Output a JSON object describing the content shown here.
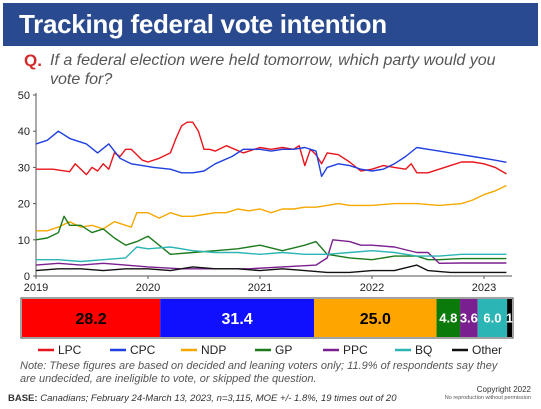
{
  "header": {
    "title": "Tracking federal vote intention"
  },
  "question": {
    "label": "Q.",
    "text": "If a federal election were held tomorrow, which party would you vote for?"
  },
  "footer": {
    "note": "Note:  These figures are based on decided and leaning voters only; 11.9% of respondents say they are undecided, are ineligible to vote, or skipped the question.",
    "base_label": "BASE:",
    "base_text": " Canadians; February 24-March 13, 2023, n=3,115,  MOE +/- 1.8%, 19 times out of 20",
    "copyright": "Copyright 2022",
    "copyright_sub": "No reproduction without permission"
  },
  "chart_data": [
    {
      "type": "line",
      "title": "",
      "xlabel": "",
      "ylabel": "",
      "ylim": [
        0,
        50
      ],
      "xlim": [
        2019.0,
        2023.25
      ],
      "yticks": [
        0,
        10,
        20,
        30,
        40,
        50
      ],
      "xticks": [
        "2019",
        "2020",
        "2021",
        "2022",
        "2023"
      ],
      "grid": false,
      "legend": "bottom",
      "series": [
        {
          "name": "LPC",
          "color": "#e8141b",
          "x": [
            2019.0,
            2019.15,
            2019.3,
            2019.35,
            2019.45,
            2019.5,
            2019.55,
            2019.6,
            2019.65,
            2019.7,
            2019.75,
            2019.8,
            2019.85,
            2019.95,
            2020.0,
            2020.1,
            2020.2,
            2020.25,
            2020.3,
            2020.35,
            2020.4,
            2020.45,
            2020.5,
            2020.55,
            2020.6,
            2020.7,
            2020.85,
            2021.0,
            2021.1,
            2021.2,
            2021.3,
            2021.35,
            2021.4,
            2021.45,
            2021.5,
            2021.55,
            2021.6,
            2021.7,
            2021.8,
            2021.9,
            2022.0,
            2022.1,
            2022.2,
            2022.3,
            2022.35,
            2022.4,
            2022.5,
            2022.6,
            2022.7,
            2022.8,
            2022.9,
            2023.0,
            2023.1,
            2023.2
          ],
          "values": [
            29.5,
            29.5,
            28.8,
            31,
            28,
            30,
            29,
            31,
            29.5,
            34,
            33,
            35,
            35,
            32,
            31.5,
            32.5,
            34,
            38,
            41.5,
            42.5,
            42.5,
            40,
            35,
            35,
            34.5,
            36,
            34,
            35.5,
            35,
            35.5,
            35,
            36,
            30.5,
            35,
            33.5,
            31,
            34,
            33.5,
            31.5,
            29,
            29.5,
            30.5,
            30,
            29.5,
            31,
            28.5,
            28.5,
            29.5,
            30.5,
            31.5,
            31.5,
            31,
            30,
            28.2
          ]
        },
        {
          "name": "CPC",
          "color": "#1f3fe0",
          "x": [
            2019.0,
            2019.1,
            2019.2,
            2019.3,
            2019.35,
            2019.45,
            2019.55,
            2019.65,
            2019.75,
            2019.85,
            2019.95,
            2020.05,
            2020.2,
            2020.3,
            2020.4,
            2020.5,
            2020.6,
            2020.75,
            2020.85,
            2021.0,
            2021.1,
            2021.2,
            2021.3,
            2021.4,
            2021.5,
            2021.55,
            2021.6,
            2021.7,
            2021.8,
            2021.9,
            2022.0,
            2022.1,
            2022.2,
            2022.3,
            2022.4,
            2022.5,
            2022.6,
            2022.7,
            2022.8,
            2022.9,
            2023.0,
            2023.1,
            2023.2
          ],
          "values": [
            36.5,
            37.5,
            40,
            38,
            37.5,
            36.5,
            34,
            36.5,
            32.5,
            31,
            30.5,
            30,
            29.5,
            28.5,
            28.5,
            29,
            31,
            33,
            35,
            35,
            34.5,
            35,
            35,
            35.5,
            34.5,
            27.5,
            30,
            31,
            30.5,
            29.5,
            29,
            29.5,
            31,
            33,
            35.5,
            35,
            34.5,
            34,
            33.5,
            33,
            32.5,
            32,
            31.4
          ]
        },
        {
          "name": "NDP",
          "color": "#f5a800",
          "x": [
            2019.0,
            2019.1,
            2019.2,
            2019.3,
            2019.4,
            2019.5,
            2019.6,
            2019.7,
            2019.8,
            2019.85,
            2019.9,
            2020.0,
            2020.1,
            2020.2,
            2020.3,
            2020.4,
            2020.5,
            2020.6,
            2020.7,
            2020.8,
            2020.9,
            2021.0,
            2021.1,
            2021.2,
            2021.3,
            2021.4,
            2021.5,
            2021.6,
            2021.7,
            2021.8,
            2021.9,
            2022.0,
            2022.2,
            2022.4,
            2022.6,
            2022.8,
            2022.9,
            2023.0,
            2023.1,
            2023.2
          ],
          "values": [
            12.5,
            12.5,
            13.5,
            15,
            13.5,
            14,
            13,
            15,
            14,
            13.5,
            17.5,
            17.5,
            16,
            17.5,
            16.5,
            16.5,
            17,
            17.5,
            17.5,
            18.5,
            18,
            18.5,
            17.5,
            18.5,
            18.5,
            19,
            19,
            19.5,
            20,
            19.5,
            19.5,
            19.5,
            20,
            20,
            19.5,
            20,
            21,
            22.5,
            23.5,
            25.0
          ]
        },
        {
          "name": "GP",
          "color": "#1c7a1c",
          "x": [
            2019.0,
            2019.1,
            2019.2,
            2019.25,
            2019.3,
            2019.4,
            2019.5,
            2019.6,
            2019.7,
            2019.8,
            2019.9,
            2020.0,
            2020.2,
            2020.4,
            2020.6,
            2020.8,
            2021.0,
            2021.2,
            2021.4,
            2021.5,
            2021.6,
            2021.8,
            2022.0,
            2022.2,
            2022.4,
            2022.5,
            2022.6,
            2022.8,
            2023.0,
            2023.2
          ],
          "values": [
            10,
            10.5,
            12,
            16.5,
            14,
            14,
            12,
            13,
            10.5,
            8.5,
            9.5,
            11,
            6,
            6.5,
            7,
            7.5,
            8.5,
            7,
            8.5,
            9.5,
            6,
            5,
            4.5,
            5.5,
            5.5,
            4.5,
            4.5,
            4.8,
            4.8,
            4.8
          ]
        },
        {
          "name": "PPC",
          "color": "#7a1f8f",
          "x": [
            2019.0,
            2019.2,
            2019.4,
            2019.6,
            2019.8,
            2020.0,
            2020.3,
            2020.6,
            2020.9,
            2021.2,
            2021.5,
            2021.6,
            2021.65,
            2021.8,
            2021.9,
            2022.0,
            2022.2,
            2022.4,
            2022.5,
            2022.6,
            2022.8,
            2023.0,
            2023.2
          ],
          "values": [
            3,
            3.5,
            3,
            3.5,
            3,
            2.5,
            2,
            2,
            2,
            2.5,
            3,
            5,
            10,
            9.5,
            8.5,
            8.5,
            8,
            6.5,
            6.5,
            3.5,
            3.6,
            3.6,
            3.6
          ]
        },
        {
          "name": "BQ",
          "color": "#2bb5b5",
          "x": [
            2019.0,
            2019.2,
            2019.4,
            2019.6,
            2019.8,
            2019.9,
            2020.0,
            2020.2,
            2020.4,
            2020.6,
            2020.8,
            2021.0,
            2021.2,
            2021.4,
            2021.6,
            2021.8,
            2022.0,
            2022.2,
            2022.4,
            2022.6,
            2022.8,
            2023.0,
            2023.2
          ],
          "values": [
            4.5,
            4.5,
            4,
            4.5,
            5,
            8,
            7.5,
            8,
            7,
            6.5,
            6.5,
            6,
            6.5,
            6,
            6,
            6.5,
            7,
            6.5,
            5.5,
            5.5,
            6,
            6,
            6.0
          ]
        },
        {
          "name": "Other",
          "color": "#111111",
          "x": [
            2019.0,
            2019.2,
            2019.4,
            2019.6,
            2019.8,
            2020.0,
            2020.2,
            2020.4,
            2020.6,
            2020.8,
            2021.0,
            2021.2,
            2021.4,
            2021.6,
            2021.8,
            2022.0,
            2022.2,
            2022.4,
            2022.5,
            2022.7,
            2022.9,
            2023.1,
            2023.2
          ],
          "values": [
            1.5,
            2,
            2,
            1.5,
            2,
            2,
            1.5,
            2.5,
            2,
            2,
            1.5,
            2,
            1.5,
            1,
            1,
            1.5,
            1.5,
            3,
            1.5,
            1,
            1,
            1,
            1.0
          ]
        }
      ]
    },
    {
      "type": "bar",
      "orientation": "horizontal-stacked",
      "categories": [
        "LPC",
        "CPC",
        "NDP",
        "GP",
        "PPC",
        "BQ",
        "Other"
      ],
      "values": [
        28.2,
        31.4,
        25.0,
        4.8,
        3.6,
        6.0,
        1.0
      ],
      "labels": [
        "28.2",
        "31.4",
        "25.0",
        "4.8",
        "3.6",
        "6.0",
        "1"
      ],
      "colors": [
        "#ff0000",
        "#1010ff",
        "#ffa500",
        "#0a7a0a",
        "#7a1f8f",
        "#2bb5b5",
        "#000000"
      ]
    }
  ]
}
